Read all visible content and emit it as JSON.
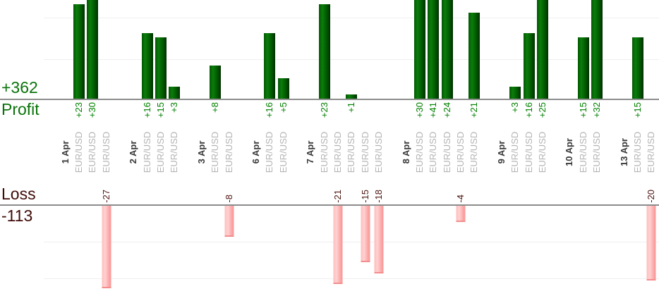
{
  "left_panel": {
    "profit_total": "+362",
    "profit_label": "Profit",
    "loss_label": "Loss",
    "loss_total": "-113"
  },
  "chart_data": {
    "type": "bar",
    "description": "Daily trading results per trade; green upward bars are profits (top chart), pink downward bars are losses (bottom chart); each trade column is labeled with its symbol and each day with its date",
    "profit_axis": {
      "ylim": [
        0,
        24
      ],
      "gridlines": [
        10,
        20
      ],
      "total_label": "+362"
    },
    "loss_axis": {
      "ylim": [
        -22,
        0
      ],
      "gridlines": [
        -10,
        -20
      ],
      "total_label": "-113"
    },
    "symbol": "EUR/USD",
    "days": [
      {
        "date": "1 Apr",
        "trades": [
          {
            "symbol": "EUR/USD",
            "value": 23,
            "label": "+23"
          },
          {
            "symbol": "EUR/USD",
            "value": 30,
            "label": "+30"
          },
          {
            "symbol": "EUR/USD",
            "value": -27,
            "label": "-27"
          }
        ]
      },
      {
        "date": "2 Apr",
        "trades": [
          {
            "symbol": "EUR/USD",
            "value": 16,
            "label": "+16"
          },
          {
            "symbol": "EUR/USD",
            "value": 15,
            "label": "+15"
          },
          {
            "symbol": "EUR/USD",
            "value": 3,
            "label": "+3"
          }
        ]
      },
      {
        "date": "3 Apr",
        "trades": [
          {
            "symbol": "EUR/USD",
            "value": 8,
            "label": "+8"
          },
          {
            "symbol": "EUR/USD",
            "value": -8,
            "label": "-8"
          }
        ]
      },
      {
        "date": "6 Apr",
        "trades": [
          {
            "symbol": "EUR/USD",
            "value": 16,
            "label": "+16"
          },
          {
            "symbol": "EUR/USD",
            "value": 5,
            "label": "+5"
          }
        ]
      },
      {
        "date": "7 Apr",
        "trades": [
          {
            "symbol": "EUR/USD",
            "value": 23,
            "label": "+23"
          },
          {
            "symbol": "EUR/USD",
            "value": -21,
            "label": "-21"
          },
          {
            "symbol": "EUR/USD",
            "value": 1,
            "label": "+1"
          },
          {
            "symbol": "EUR/USD",
            "value": -15,
            "label": "-15"
          },
          {
            "symbol": "EUR/USD",
            "value": -18,
            "label": "-18"
          }
        ]
      },
      {
        "date": "8 Apr",
        "trades": [
          {
            "symbol": "EUR/USD",
            "value": 30,
            "label": "+30"
          },
          {
            "symbol": "EUR/USD",
            "value": 41,
            "label": "+41"
          },
          {
            "symbol": "EUR/USD",
            "value": 24,
            "label": "+24"
          },
          {
            "symbol": "EUR/USD",
            "value": -4,
            "label": "-4"
          },
          {
            "symbol": "EUR/USD",
            "value": 21,
            "label": "+21"
          }
        ]
      },
      {
        "date": "9 Apr",
        "trades": [
          {
            "symbol": "EUR/USD",
            "value": 3,
            "label": "+3"
          },
          {
            "symbol": "EUR/USD",
            "value": 16,
            "label": "+16"
          },
          {
            "symbol": "EUR/USD",
            "value": 25,
            "label": "+25"
          }
        ]
      },
      {
        "date": "10 Apr",
        "trades": [
          {
            "symbol": "EUR/USD",
            "value": 15,
            "label": "+15"
          },
          {
            "symbol": "EUR/USD",
            "value": 32,
            "label": "+32"
          }
        ]
      },
      {
        "date": "13 Apr",
        "trades": [
          {
            "symbol": "EUR/USD",
            "value": 15,
            "label": "+15"
          },
          {
            "symbol": "EUR/USD",
            "value": -20,
            "label": "-20"
          }
        ]
      }
    ]
  },
  "colors": {
    "profit_text": "#008000",
    "profit_heading": "#0a730a",
    "loss_text": "#4a120e",
    "loss_heading": "#400b08",
    "date_text": "#3a3a3a",
    "symbol_text": "#b4b4b4",
    "axis_line": "#8c8c8c",
    "gridline": "#efefef",
    "profit_bar": "#006000",
    "loss_bar": "#ffb0b0"
  }
}
